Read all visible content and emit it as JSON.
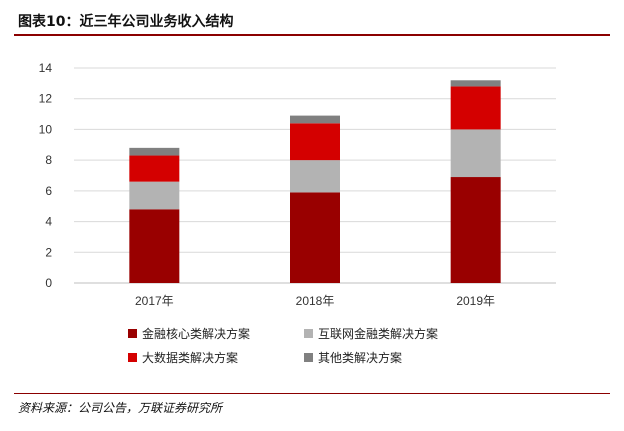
{
  "header": {
    "title": "图表10：近三年公司业务收入结构"
  },
  "footer": {
    "source": "资料来源：公司公告，万联证券研究所"
  },
  "colors": {
    "accent": "#8b0000"
  },
  "chart_data": {
    "type": "bar",
    "stacked": true,
    "categories": [
      "2017年",
      "2018年",
      "2019年"
    ],
    "series": [
      {
        "name": "金融核心类解决方案",
        "color": "#990000",
        "values": [
          4.8,
          5.9,
          6.9
        ]
      },
      {
        "name": "互联网金融类解决方案",
        "color": "#b3b3b3",
        "values": [
          1.8,
          2.1,
          3.1
        ]
      },
      {
        "name": "大数据类解决方案",
        "color": "#d40000",
        "values": [
          1.7,
          2.4,
          2.8
        ]
      },
      {
        "name": "其他类解决方案",
        "color": "#808080",
        "values": [
          0.5,
          0.5,
          0.4
        ]
      }
    ],
    "ylim": [
      0,
      14
    ],
    "yticks": [
      "0",
      "2",
      "4",
      "6",
      "8",
      "10",
      "12",
      "14"
    ],
    "grid": true,
    "legend_position": "bottom"
  }
}
